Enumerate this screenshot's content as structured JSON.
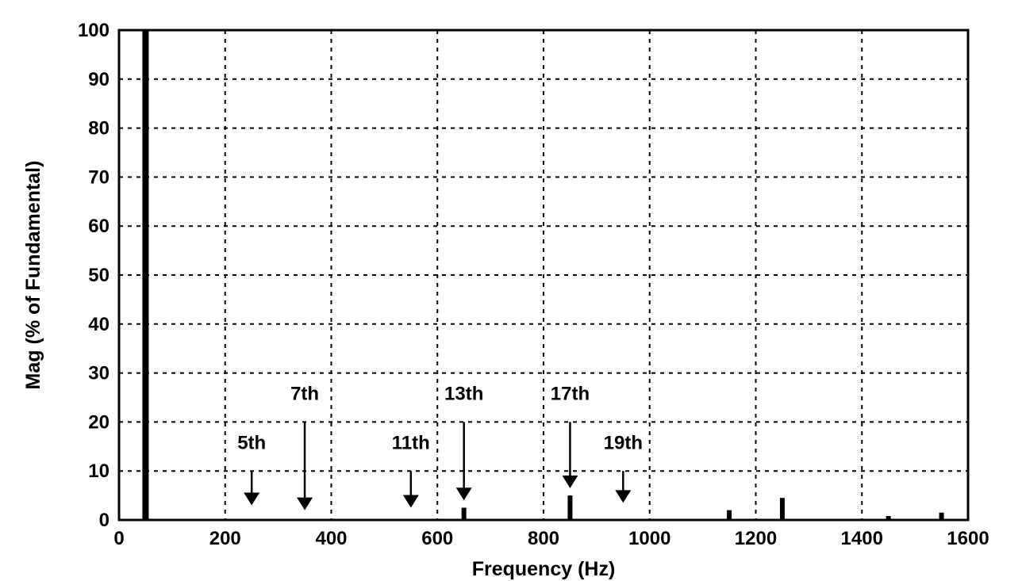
{
  "chart_data": {
    "type": "bar",
    "title": "",
    "xlabel": "Frequency (Hz)",
    "ylabel": "Mag (% of Fundamental)",
    "xlim": [
      0,
      1600
    ],
    "ylim": [
      0,
      100
    ],
    "xticks": [
      0,
      200,
      400,
      600,
      800,
      1000,
      1200,
      1400,
      1600
    ],
    "yticks": [
      0,
      10,
      20,
      30,
      40,
      50,
      60,
      70,
      80,
      90,
      100
    ],
    "grid": true,
    "bars": [
      {
        "x": 50,
        "y": 100
      },
      {
        "x": 650,
        "y": 2.5
      },
      {
        "x": 850,
        "y": 5
      },
      {
        "x": 1150,
        "y": 2
      },
      {
        "x": 1250,
        "y": 4.5
      },
      {
        "x": 1450,
        "y": 0.8
      },
      {
        "x": 1550,
        "y": 1.5
      }
    ],
    "annotations": [
      {
        "label": "5th",
        "x": 250,
        "label_y": 14.5,
        "arrow_from": 10,
        "arrow_to": 3
      },
      {
        "label": "7th",
        "x": 350,
        "label_y": 24.5,
        "arrow_from": 20,
        "arrow_to": 2
      },
      {
        "label": "11th",
        "x": 550,
        "label_y": 14.5,
        "arrow_from": 10,
        "arrow_to": 2.5
      },
      {
        "label": "13th",
        "x": 650,
        "label_y": 24.5,
        "arrow_from": 20,
        "arrow_to": 4
      },
      {
        "label": "17th",
        "x": 850,
        "label_y": 24.5,
        "arrow_from": 20,
        "arrow_to": 6.5
      },
      {
        "label": "19th",
        "x": 950,
        "label_y": 14.5,
        "arrow_from": 10,
        "arrow_to": 3.5
      }
    ]
  }
}
